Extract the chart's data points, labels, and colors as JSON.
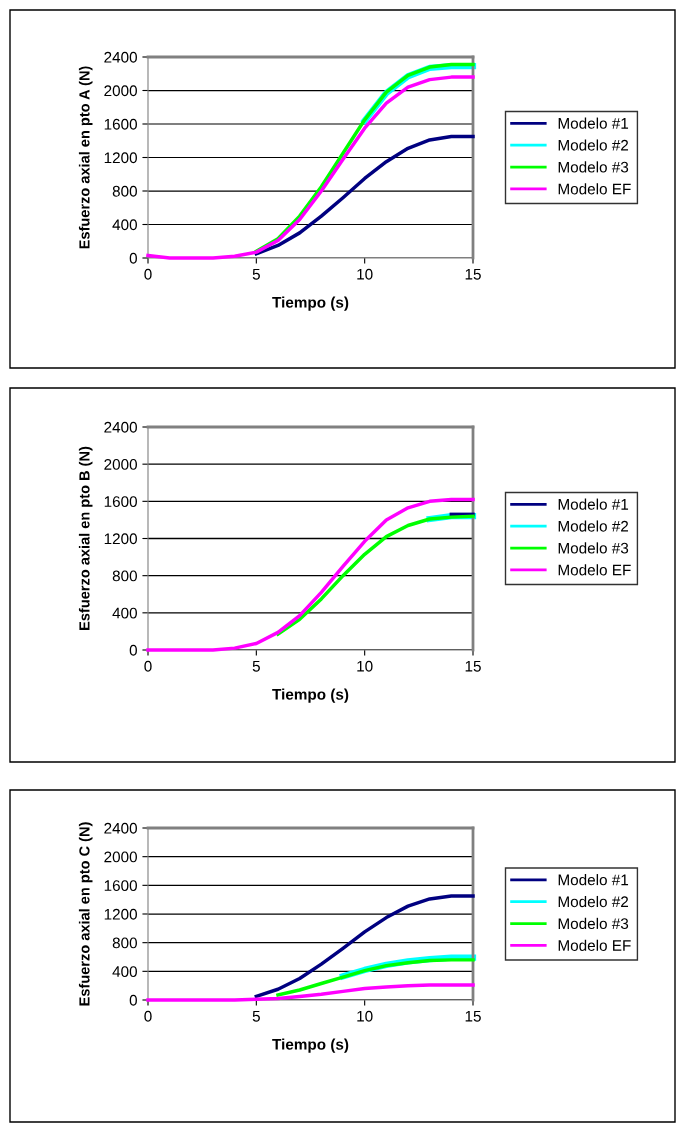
{
  "chart_data": [
    {
      "type": "line",
      "xlabel": "Tiempo (s)",
      "ylabel": "Esfuerzo axial en pto A (N)",
      "x": [
        0,
        1,
        2,
        3,
        4,
        5,
        6,
        7,
        8,
        9,
        10,
        11,
        12,
        13,
        14,
        15
      ],
      "xlim": [
        0,
        15
      ],
      "xticks": [
        0,
        5,
        10,
        15
      ],
      "ylim": [
        0,
        2400
      ],
      "yticks": [
        0,
        400,
        800,
        1200,
        1600,
        2000,
        2400
      ],
      "grid": "y",
      "legend": "right",
      "series": [
        {
          "name": "Modelo #1",
          "color": "#000080",
          "values": [
            null,
            null,
            null,
            null,
            null,
            50,
            150,
            300,
            500,
            720,
            950,
            1150,
            1310,
            1410,
            1450,
            1450
          ]
        },
        {
          "name": "Modelo #2",
          "color": "#00ffff",
          "values": [
            null,
            null,
            null,
            null,
            null,
            null,
            null,
            null,
            null,
            null,
            1640,
            1970,
            2170,
            2270,
            2290,
            2290
          ]
        },
        {
          "name": "Modelo #3",
          "color": "#00ff00",
          "values": [
            null,
            null,
            null,
            null,
            null,
            80,
            230,
            500,
            850,
            1250,
            1650,
            1980,
            2180,
            2280,
            2310,
            2310
          ]
        },
        {
          "name": "Modelo EF",
          "color": "#ff00ff",
          "values": [
            30,
            0,
            0,
            0,
            20,
            70,
            210,
            460,
            800,
            1180,
            1550,
            1850,
            2040,
            2130,
            2160,
            2160
          ]
        }
      ]
    },
    {
      "type": "line",
      "xlabel": "Tiempo (s)",
      "ylabel": "Esfuerzo axial en pto B (N)",
      "x": [
        0,
        1,
        2,
        3,
        4,
        5,
        6,
        7,
        8,
        9,
        10,
        11,
        12,
        13,
        14,
        15
      ],
      "xlim": [
        0,
        15
      ],
      "xticks": [
        0,
        5,
        10,
        15
      ],
      "ylim": [
        0,
        2400
      ],
      "yticks": [
        0,
        400,
        800,
        1200,
        1600,
        2000,
        2400
      ],
      "grid": "y",
      "legend": "right",
      "series": [
        {
          "name": "Modelo #1",
          "color": "#000080",
          "values": [
            null,
            null,
            null,
            null,
            null,
            null,
            null,
            null,
            null,
            null,
            null,
            null,
            null,
            null,
            1460,
            1460
          ]
        },
        {
          "name": "Modelo #2",
          "color": "#00ffff",
          "values": [
            null,
            null,
            null,
            null,
            null,
            null,
            null,
            null,
            null,
            null,
            null,
            null,
            null,
            1410,
            1440,
            1440
          ]
        },
        {
          "name": "Modelo #3",
          "color": "#00ff00",
          "values": [
            null,
            null,
            null,
            null,
            null,
            null,
            170,
            330,
            550,
            800,
            1030,
            1220,
            1340,
            1410,
            1430,
            1440
          ]
        },
        {
          "name": "Modelo EF",
          "color": "#ff00ff",
          "values": [
            0,
            0,
            0,
            0,
            20,
            70,
            190,
            370,
            620,
            900,
            1170,
            1400,
            1530,
            1600,
            1620,
            1620
          ]
        }
      ]
    },
    {
      "type": "line",
      "xlabel": "Tiempo (s)",
      "ylabel": "Esfuerzo axial en pto C (N)",
      "x": [
        0,
        1,
        2,
        3,
        4,
        5,
        6,
        7,
        8,
        9,
        10,
        11,
        12,
        13,
        14,
        15
      ],
      "xlim": [
        0,
        15
      ],
      "xticks": [
        0,
        5,
        10,
        15
      ],
      "ylim": [
        0,
        2400
      ],
      "yticks": [
        0,
        400,
        800,
        1200,
        1600,
        2000,
        2400
      ],
      "grid": "y",
      "legend": "right",
      "series": [
        {
          "name": "Modelo #1",
          "color": "#000080",
          "values": [
            null,
            null,
            null,
            null,
            null,
            50,
            150,
            300,
            500,
            720,
            950,
            1150,
            1310,
            1410,
            1450,
            1450
          ]
        },
        {
          "name": "Modelo #2",
          "color": "#00ffff",
          "values": [
            null,
            null,
            null,
            null,
            null,
            null,
            null,
            null,
            null,
            330,
            420,
            490,
            540,
            570,
            590,
            590
          ]
        },
        {
          "name": "Modelo #3",
          "color": "#00ff00",
          "values": [
            null,
            null,
            null,
            null,
            null,
            null,
            70,
            140,
            230,
            320,
            410,
            480,
            520,
            550,
            560,
            560
          ]
        },
        {
          "name": "Modelo EF",
          "color": "#ff00ff",
          "values": [
            0,
            0,
            0,
            0,
            0,
            10,
            20,
            50,
            80,
            120,
            160,
            180,
            200,
            210,
            210,
            210
          ]
        }
      ]
    }
  ]
}
